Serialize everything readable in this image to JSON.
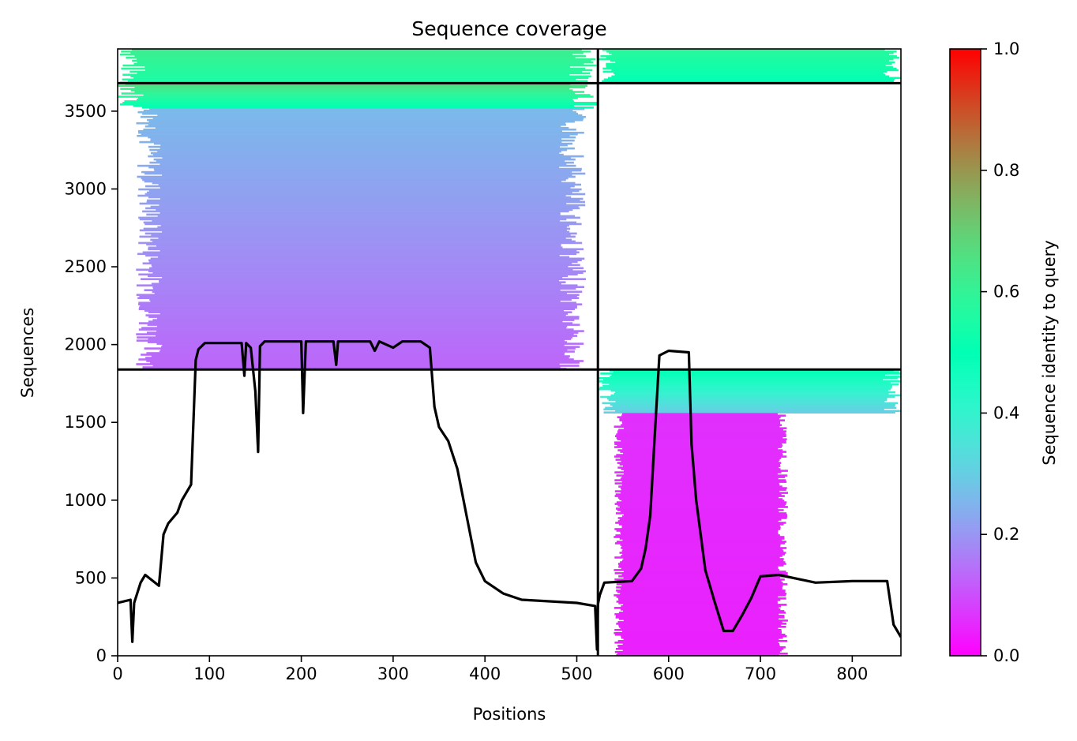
{
  "chart_data": {
    "type": "heatmap",
    "title": "Sequence coverage",
    "xlabel": "Positions",
    "ylabel": "Sequences",
    "xlim": [
      0,
      853
    ],
    "ylim": [
      0,
      3900
    ],
    "x_ticks": [
      "0",
      "100",
      "200",
      "300",
      "400",
      "500",
      "600",
      "700",
      "800"
    ],
    "y_ticks": [
      "0",
      "500",
      "1000",
      "1500",
      "2000",
      "2500",
      "3000",
      "3500"
    ],
    "colorbar": {
      "label": "Sequence identity to query",
      "colormap": "rainbow",
      "range": [
        0.0,
        1.0
      ],
      "ticks": [
        "0.0",
        "0.2",
        "0.4",
        "0.6",
        "0.8",
        "1.0"
      ]
    },
    "segment_boundary_x": 523,
    "horizontal_dividers_y": [
      1840,
      3680
    ],
    "blocks": [
      {
        "x_start": 0,
        "x_end": 523,
        "y_start": 3680,
        "y_end": 3900,
        "identity_bottom": 0.55,
        "identity_top": 0.62
      },
      {
        "x_start": 523,
        "x_end": 853,
        "y_start": 3680,
        "y_end": 3900,
        "identity_bottom": 0.5,
        "identity_top": 0.58
      },
      {
        "x_start": 0,
        "x_end": 523,
        "y_start": 3520,
        "y_end": 3680,
        "identity_bottom": 0.5,
        "identity_top": 0.66
      },
      {
        "x_start": 20,
        "x_end": 510,
        "y_start": 1840,
        "y_end": 3520,
        "identity_bottom": 0.13,
        "identity_top": 0.26
      },
      {
        "x_start": 523,
        "x_end": 853,
        "y_start": 1560,
        "y_end": 1840,
        "identity_bottom": 0.3,
        "identity_top": 0.5
      },
      {
        "x_start": 540,
        "x_end": 730,
        "y_start": 0,
        "y_end": 1560,
        "identity_bottom": 0.04,
        "identity_top": 0.06
      }
    ],
    "coverage_line": {
      "x": [
        0,
        14,
        16,
        18,
        25,
        30,
        45,
        50,
        55,
        65,
        70,
        80,
        85,
        88,
        95,
        135,
        138,
        140,
        145,
        150,
        153,
        155,
        160,
        200,
        202,
        205,
        235,
        238,
        240,
        275,
        280,
        285,
        300,
        310,
        330,
        340,
        345,
        350,
        360,
        370,
        380,
        390,
        400,
        420,
        440,
        500,
        520,
        522,
        523,
        525,
        530,
        560,
        570,
        575,
        580,
        585,
        590,
        600,
        622,
        625,
        630,
        640,
        650,
        660,
        670,
        680,
        690,
        700,
        720,
        760,
        800,
        838,
        845,
        853
      ],
      "y": [
        340,
        360,
        90,
        340,
        470,
        520,
        450,
        780,
        850,
        920,
        1000,
        1100,
        1900,
        1970,
        2010,
        2010,
        1800,
        2010,
        1980,
        1700,
        1310,
        1990,
        2020,
        2020,
        1560,
        2020,
        2020,
        1870,
        2020,
        2020,
        1960,
        2020,
        1980,
        2020,
        2020,
        1980,
        1600,
        1470,
        1380,
        1200,
        900,
        600,
        480,
        400,
        360,
        340,
        320,
        40,
        330,
        390,
        470,
        480,
        560,
        690,
        900,
        1420,
        1930,
        1960,
        1950,
        1360,
        1000,
        550,
        350,
        160,
        160,
        260,
        370,
        510,
        520,
        470,
        480,
        480,
        200,
        120
      ]
    }
  }
}
